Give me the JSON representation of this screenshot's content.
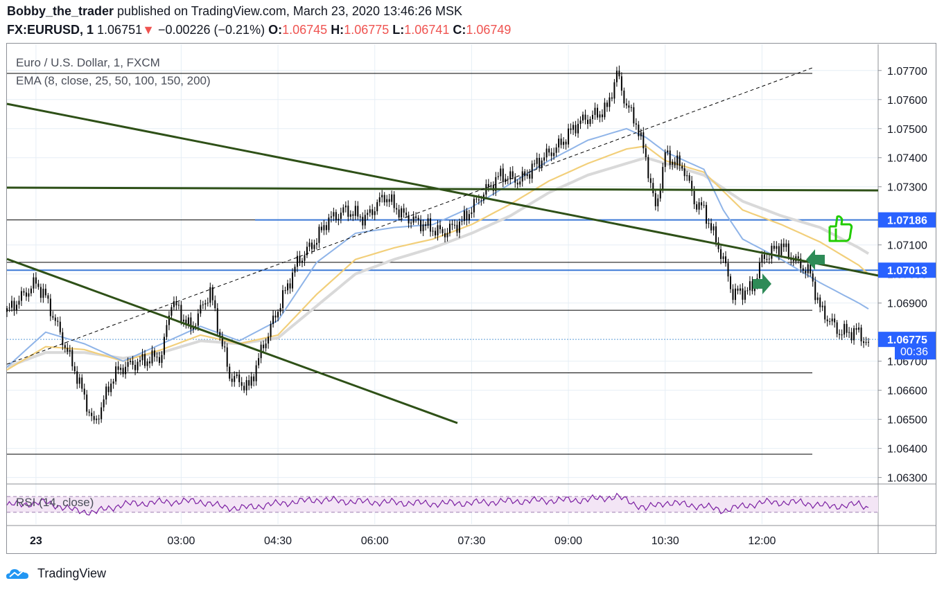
{
  "header": {
    "author": "Bobby_the_trader",
    "published_text": " published on TradingView.com, March 23, 2020 13:46:26 MSK",
    "symbol": "FX:EURUSD, 1",
    "last": "1.06751",
    "change_arrow": "▼",
    "change": "−0.00226 (−0.21%)",
    "o_label": "O:",
    "o_value": "1.06745",
    "h_label": "H:",
    "h_value": "1.06775",
    "l_label": "L:",
    "l_value": "1.06741",
    "c_label": "C:",
    "c_value": "1.06749"
  },
  "legend": {
    "instrument": "Euro / U.S. Dollar, 1, FXCM",
    "indicator": "EMA (8, close, 25, 50, 100, 150, 200)",
    "rsi": "RSI (14, close)"
  },
  "footer": {
    "brand": "TradingView",
    "logo_icon": "tradingview-cloud-icon"
  },
  "colors": {
    "candle": "#000000",
    "ema_fast": "#8fb4e8",
    "ema_mid": "#f2cf7a",
    "ema_slow": "#d9d9d9",
    "trendline": "#2e5017",
    "level_blue": "#3a78d6",
    "rsi_line": "#7b1fa2",
    "rsi_band": "#f3e5f5",
    "badge_blue": "#2962ff",
    "thumb": "#22cc00",
    "arrow": "#2e8b57"
  },
  "chart_data": {
    "type": "candlestick",
    "title": "Euro / U.S. Dollar, 1, FXCM",
    "x_ticks": [
      "23",
      "03:00",
      "04:30",
      "06:00",
      "07:30",
      "09:00",
      "10:30",
      "12:00"
    ],
    "y_ticks": [
      "1.06300",
      "1.06400",
      "1.06500",
      "1.06600",
      "1.06700",
      "1.06900",
      "1.07000",
      "1.07100",
      "1.07300",
      "1.07400",
      "1.07500",
      "1.07600",
      "1.07700"
    ],
    "y_range": [
      1.0628,
      1.0779
    ],
    "price_badges": [
      {
        "label": "1.07186",
        "value": 1.07186
      },
      {
        "label": "1.07013",
        "value": 1.07013
      },
      {
        "label": "1.06775",
        "value": 1.06775
      }
    ],
    "countdown": "00:36",
    "horizontal_levels": [
      1.0769,
      1.07186,
      1.07013,
      1.06875,
      1.0666,
      1.0638,
      1.0704
    ],
    "close_path": [
      [
        0,
        1.0687
      ],
      [
        3,
        1.0697
      ],
      [
        4,
        1.0692
      ],
      [
        7,
        1.0667
      ],
      [
        9,
        1.0648
      ],
      [
        11,
        1.0665
      ],
      [
        12,
        1.0668
      ],
      [
        14,
        1.067
      ],
      [
        16,
        1.0672
      ],
      [
        17,
        1.0691
      ],
      [
        19,
        1.0681
      ],
      [
        21,
        1.0694
      ],
      [
        22,
        1.0679
      ],
      [
        23,
        1.0665
      ],
      [
        25,
        1.0661
      ],
      [
        26,
        1.0671
      ],
      [
        28,
        1.0688
      ],
      [
        30,
        1.0704
      ],
      [
        32,
        1.0712
      ],
      [
        33,
        1.0718
      ],
      [
        35,
        1.0722
      ],
      [
        37,
        1.0719
      ],
      [
        39,
        1.0727
      ],
      [
        41,
        1.072
      ],
      [
        43,
        1.0717
      ],
      [
        45,
        1.0714
      ],
      [
        47,
        1.0718
      ],
      [
        49,
        1.0727
      ],
      [
        51,
        1.0734
      ],
      [
        53,
        1.0732
      ],
      [
        55,
        1.0739
      ],
      [
        57,
        1.0744
      ],
      [
        59,
        1.0752
      ],
      [
        61,
        1.0755
      ],
      [
        62,
        1.0757
      ],
      [
        63,
        1.0769
      ],
      [
        64,
        1.0758
      ],
      [
        65,
        1.0752
      ],
      [
        66,
        1.074
      ],
      [
        67,
        1.0722
      ],
      [
        68,
        1.0741
      ],
      [
        70,
        1.0736
      ],
      [
        71,
        1.0725
      ],
      [
        72,
        1.0722
      ],
      [
        74,
        1.0705
      ],
      [
        75,
        1.0693
      ],
      [
        77,
        1.0695
      ],
      [
        78,
        1.0705
      ],
      [
        80,
        1.071
      ],
      [
        81,
        1.0706
      ],
      [
        83,
        1.07
      ],
      [
        84,
        1.0688
      ],
      [
        86,
        1.068
      ],
      [
        88,
        1.068
      ],
      [
        89,
        1.0675
      ]
    ],
    "ema_fast": [
      [
        0,
        1.0668
      ],
      [
        4,
        1.068
      ],
      [
        8,
        1.0676
      ],
      [
        12,
        1.067
      ],
      [
        16,
        1.0676
      ],
      [
        20,
        1.0682
      ],
      [
        24,
        1.0677
      ],
      [
        28,
        1.0684
      ],
      [
        32,
        1.0704
      ],
      [
        36,
        1.0714
      ],
      [
        40,
        1.0716
      ],
      [
        44,
        1.0717
      ],
      [
        48,
        1.0723
      ],
      [
        52,
        1.0731
      ],
      [
        56,
        1.0739
      ],
      [
        60,
        1.0746
      ],
      [
        64,
        1.075
      ],
      [
        66,
        1.0747
      ],
      [
        68,
        1.0742
      ],
      [
        72,
        1.0736
      ],
      [
        74,
        1.0722
      ],
      [
        76,
        1.0712
      ],
      [
        80,
        1.0705
      ],
      [
        84,
        1.0697
      ],
      [
        88,
        1.069
      ],
      [
        89,
        1.0688
      ]
    ],
    "ema_mid": [
      [
        0,
        1.0667
      ],
      [
        4,
        1.0675
      ],
      [
        8,
        1.0674
      ],
      [
        12,
        1.067
      ],
      [
        16,
        1.0674
      ],
      [
        20,
        1.0679
      ],
      [
        24,
        1.0676
      ],
      [
        28,
        1.0679
      ],
      [
        32,
        1.0693
      ],
      [
        36,
        1.0705
      ],
      [
        40,
        1.0709
      ],
      [
        44,
        1.0712
      ],
      [
        48,
        1.0717
      ],
      [
        52,
        1.0724
      ],
      [
        56,
        1.0732
      ],
      [
        60,
        1.0738
      ],
      [
        64,
        1.0743
      ],
      [
        66,
        1.0744
      ],
      [
        68,
        1.0739
      ],
      [
        72,
        1.0735
      ],
      [
        76,
        1.0722
      ],
      [
        80,
        1.0717
      ],
      [
        84,
        1.0711
      ],
      [
        88,
        1.0703
      ],
      [
        89,
        1.07
      ]
    ],
    "ema_slow": [
      [
        0,
        1.0668
      ],
      [
        4,
        1.0673
      ],
      [
        8,
        1.0673
      ],
      [
        12,
        1.0671
      ],
      [
        16,
        1.0673
      ],
      [
        20,
        1.0677
      ],
      [
        24,
        1.0676
      ],
      [
        28,
        1.0678
      ],
      [
        32,
        1.0689
      ],
      [
        36,
        1.07
      ],
      [
        40,
        1.0705
      ],
      [
        44,
        1.0709
      ],
      [
        48,
        1.0714
      ],
      [
        52,
        1.072
      ],
      [
        56,
        1.0728
      ],
      [
        60,
        1.0734
      ],
      [
        64,
        1.0738
      ],
      [
        66,
        1.074
      ],
      [
        68,
        1.0738
      ],
      [
        72,
        1.0734
      ],
      [
        76,
        1.0725
      ],
      [
        80,
        1.072
      ],
      [
        84,
        1.0716
      ],
      [
        88,
        1.0709
      ],
      [
        89,
        1.0707
      ]
    ],
    "rsi": [
      [
        0,
        48
      ],
      [
        4,
        55
      ],
      [
        7,
        35
      ],
      [
        9,
        30
      ],
      [
        12,
        50
      ],
      [
        16,
        56
      ],
      [
        20,
        58
      ],
      [
        22,
        45
      ],
      [
        24,
        40
      ],
      [
        28,
        52
      ],
      [
        32,
        62
      ],
      [
        36,
        57
      ],
      [
        40,
        55
      ],
      [
        44,
        52
      ],
      [
        48,
        54
      ],
      [
        52,
        58
      ],
      [
        56,
        60
      ],
      [
        60,
        62
      ],
      [
        63,
        70
      ],
      [
        66,
        40
      ],
      [
        68,
        55
      ],
      [
        72,
        45
      ],
      [
        74,
        35
      ],
      [
        78,
        55
      ],
      [
        82,
        55
      ],
      [
        85,
        45
      ],
      [
        88,
        50
      ],
      [
        89,
        42
      ]
    ],
    "rsi_levels": [
      70,
      30
    ]
  }
}
